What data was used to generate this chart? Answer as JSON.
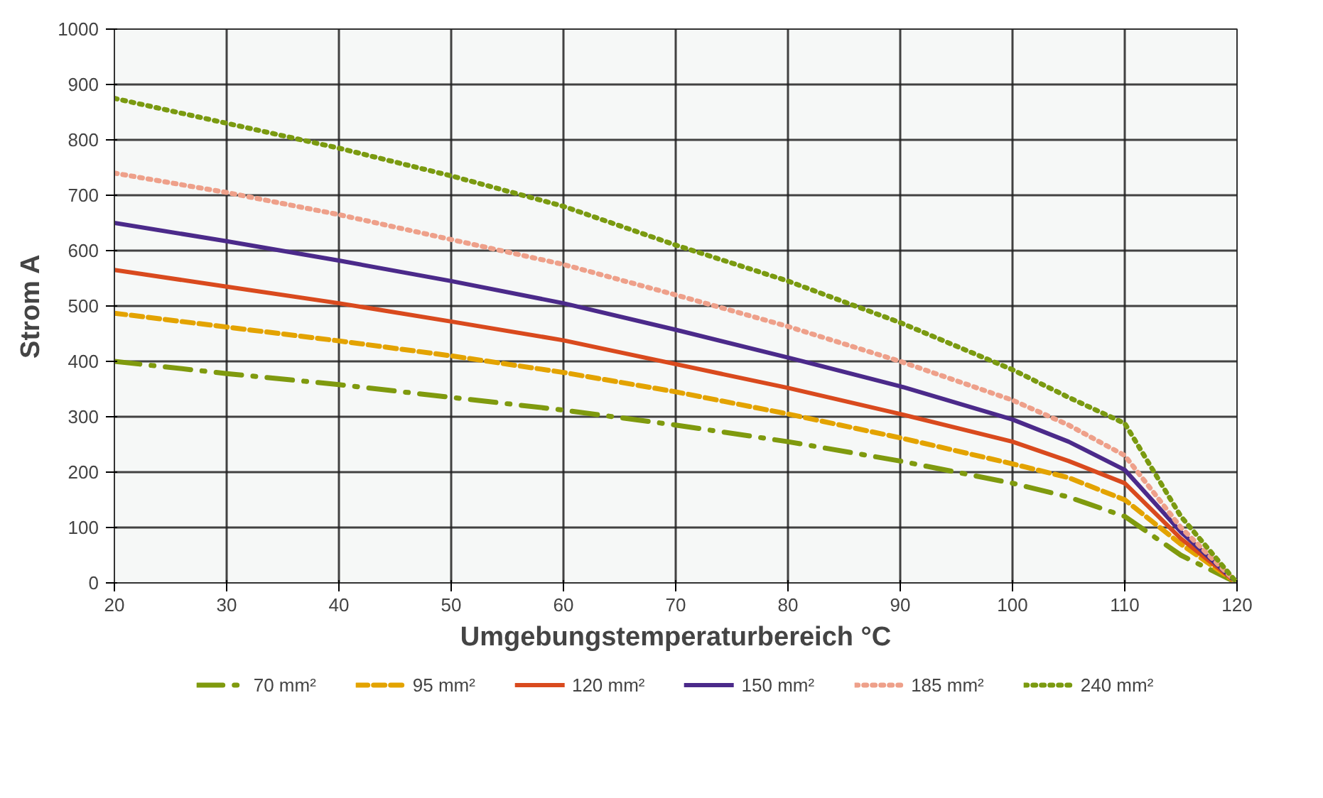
{
  "chart_data": {
    "type": "line",
    "xlabel": "Umgebungstemperaturbereich °C",
    "ylabel": "Strom A",
    "x": [
      20,
      30,
      40,
      50,
      60,
      70,
      80,
      90,
      100,
      105,
      110,
      115,
      120
    ],
    "xlim": [
      20,
      120
    ],
    "xticks": [
      20,
      30,
      40,
      50,
      60,
      70,
      80,
      90,
      100,
      110,
      120
    ],
    "ylim": [
      0,
      1000
    ],
    "yticks": [
      0,
      100,
      200,
      300,
      400,
      500,
      600,
      700,
      800,
      900,
      1000
    ],
    "grid": true,
    "legend": "bottom",
    "marker": "none",
    "series": [
      {
        "name": "70 mm²",
        "color": "#7f9a0e",
        "line_style": "dashdot",
        "values": [
          400,
          378,
          358,
          335,
          312,
          285,
          255,
          220,
          180,
          155,
          120,
          50,
          0
        ]
      },
      {
        "name": "95 mm²",
        "color": "#e3a300",
        "line_style": "dashed",
        "values": [
          487,
          462,
          437,
          410,
          380,
          345,
          305,
          262,
          215,
          190,
          150,
          70,
          0
        ]
      },
      {
        "name": "120 mm²",
        "color": "#d94a1e",
        "line_style": "solid",
        "values": [
          565,
          535,
          505,
          472,
          438,
          395,
          352,
          305,
          255,
          220,
          180,
          80,
          0
        ]
      },
      {
        "name": "150 mm²",
        "color": "#4b2a8a",
        "line_style": "solid",
        "values": [
          650,
          617,
          582,
          545,
          505,
          457,
          407,
          355,
          295,
          255,
          204,
          92,
          0
        ]
      },
      {
        "name": "185 mm²",
        "color": "#eea08a",
        "line_style": "dotted",
        "values": [
          740,
          705,
          665,
          620,
          575,
          520,
          463,
          400,
          330,
          285,
          230,
          100,
          0
        ]
      },
      {
        "name": "240 mm²",
        "color": "#7a9a10",
        "line_style": "dotted",
        "values": [
          875,
          830,
          785,
          735,
          680,
          610,
          545,
          470,
          385,
          335,
          288,
          120,
          0
        ]
      }
    ]
  }
}
